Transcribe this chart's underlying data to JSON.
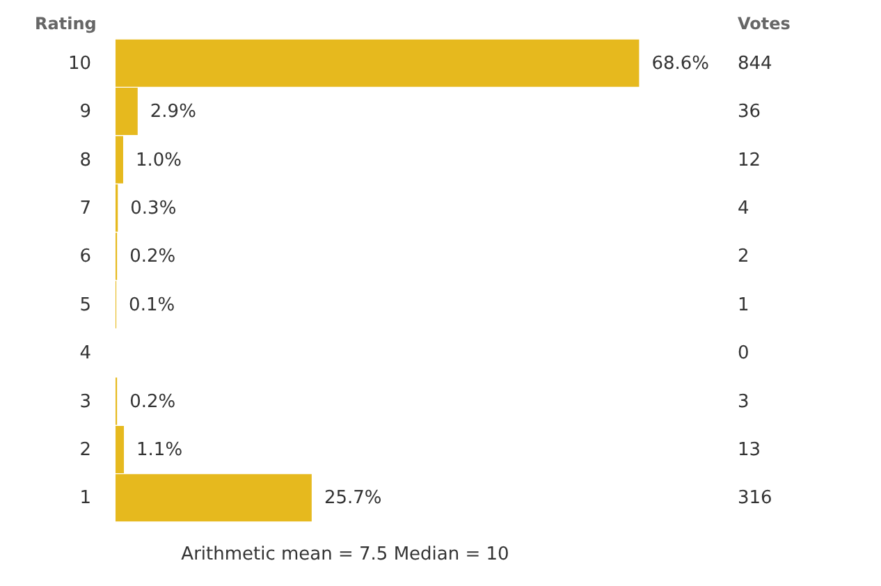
{
  "chart_data": {
    "type": "bar",
    "orientation": "horizontal",
    "ylabel": "Rating",
    "categories": [
      "10",
      "9",
      "8",
      "7",
      "6",
      "5",
      "4",
      "3",
      "2",
      "1"
    ],
    "values": [
      68.6,
      2.9,
      1.0,
      0.3,
      0.2,
      0.1,
      0,
      0.2,
      1.1,
      25.7
    ],
    "value_labels": [
      "68.6%",
      "2.9%",
      "1.0%",
      "0.3%",
      "0.2%",
      "0.1%",
      null,
      "0.2%",
      "1.1%",
      "25.7%"
    ],
    "color": "#e6b91e",
    "annotations": [
      "844",
      "36",
      "12",
      "4",
      "2",
      "1",
      "0",
      "3",
      "13",
      "316",
      "Votes",
      "Arithmetic mean = 7.5   Median = 10"
    ]
  }
}
